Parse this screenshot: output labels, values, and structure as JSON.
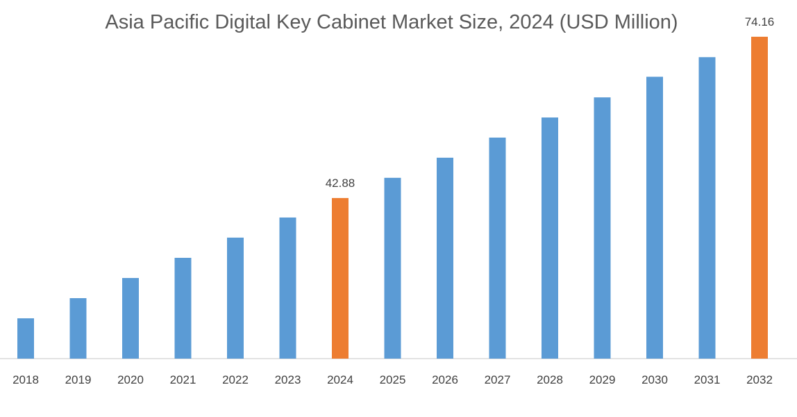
{
  "chart_data": {
    "type": "bar",
    "title": "Asia Pacific Digital Key Cabinet Market Size, 2024 (USD Million)",
    "xlabel": "",
    "ylabel": "",
    "categories": [
      "2018",
      "2019",
      "2020",
      "2021",
      "2022",
      "2023",
      "2024",
      "2025",
      "2026",
      "2027",
      "2028",
      "2029",
      "2030",
      "2031",
      "2032"
    ],
    "values": [
      19.55,
      23.46,
      27.37,
      31.28,
      35.2,
      39.1,
      42.88,
      46.8,
      50.7,
      54.6,
      58.5,
      62.4,
      66.4,
      70.2,
      74.16
    ],
    "data_labels": {
      "2024": "42.88",
      "2032": "74.16"
    },
    "highlight": [
      "2024",
      "2032"
    ],
    "colors": {
      "default": "#5B9BD5",
      "highlight": "#ED7D31"
    },
    "grid": false,
    "legend": "none"
  }
}
